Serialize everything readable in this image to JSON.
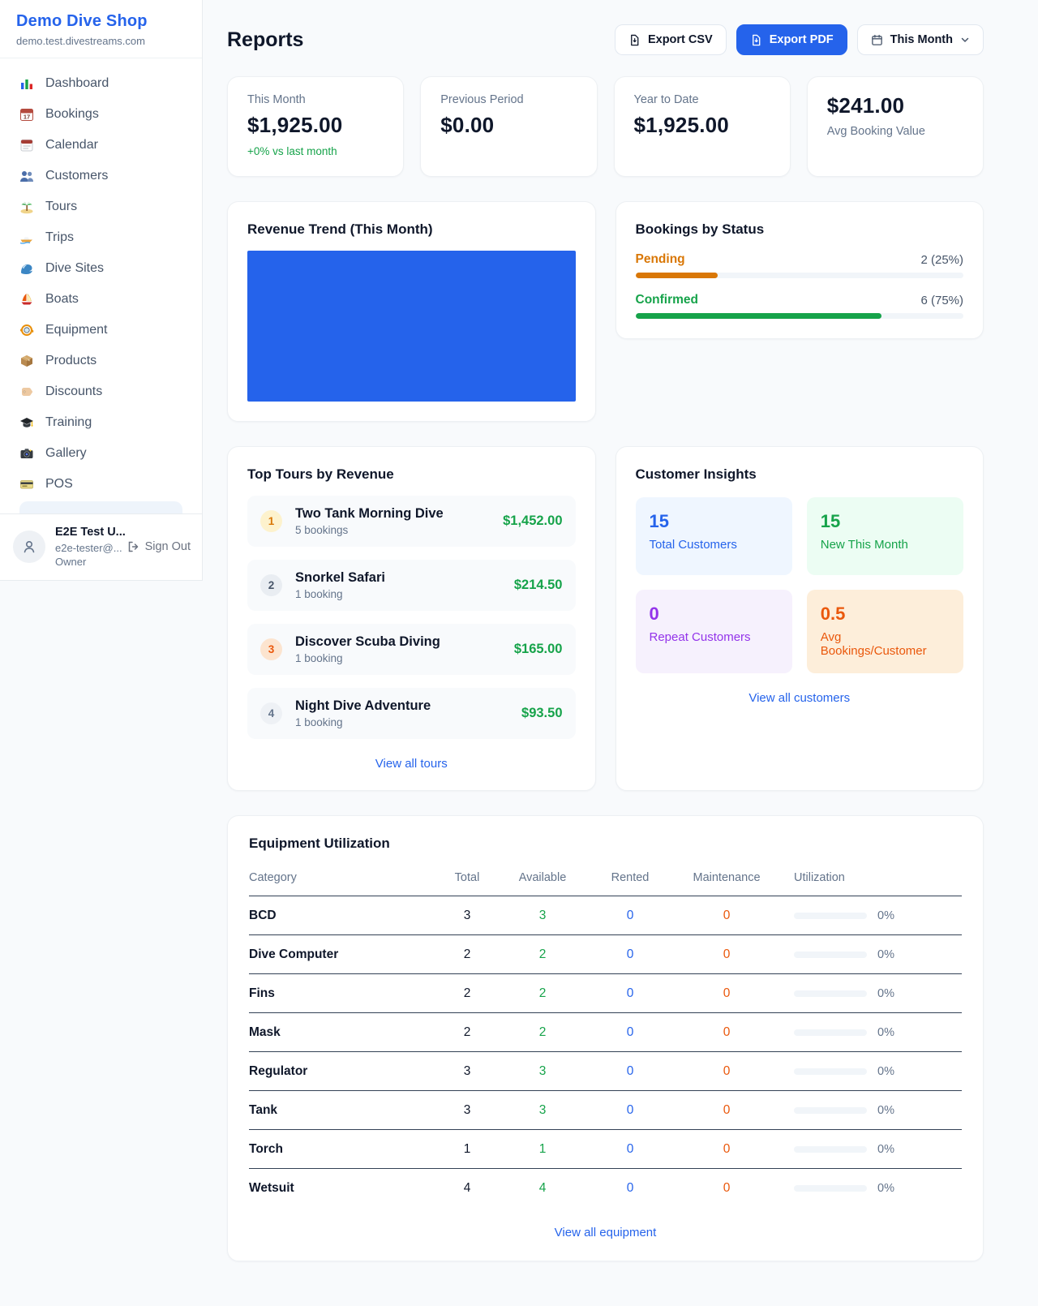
{
  "colors": {
    "accent_blue": "#2563eb",
    "green": "#16a34a",
    "pending_orange": "#d97706",
    "maintenance_orange": "#ea580c",
    "purple": "#9333ea",
    "page_bg": "#f8fafc"
  },
  "sidebar": {
    "shop_name": "Demo Dive Shop",
    "shop_domain": "demo.test.divestreams.com",
    "nav": [
      {
        "icon": "bar-chart-icon",
        "label": "Dashboard"
      },
      {
        "icon": "calendar-17-icon",
        "label": "Bookings"
      },
      {
        "icon": "calendar-pad-icon",
        "label": "Calendar"
      },
      {
        "icon": "people-icon",
        "label": "Customers"
      },
      {
        "icon": "island-icon",
        "label": "Tours"
      },
      {
        "icon": "speedboat-icon",
        "label": "Trips"
      },
      {
        "icon": "wave-icon",
        "label": "Dive Sites"
      },
      {
        "icon": "sailboat-icon",
        "label": "Boats"
      },
      {
        "icon": "dive-mask-icon",
        "label": "Equipment"
      },
      {
        "icon": "package-icon",
        "label": "Products"
      },
      {
        "icon": "tag-icon",
        "label": "Discounts"
      },
      {
        "icon": "grad-cap-icon",
        "label": "Training"
      },
      {
        "icon": "camera-icon",
        "label": "Gallery"
      },
      {
        "icon": "credit-card-icon",
        "label": "POS"
      }
    ],
    "user": {
      "name": "E2E Test U...",
      "email": "e2e-tester@...",
      "role": "Owner",
      "sign_out_label": "Sign Out"
    }
  },
  "header": {
    "title": "Reports",
    "export_csv_label": "Export CSV",
    "export_pdf_label": "Export PDF",
    "period_label": "This Month"
  },
  "stats": {
    "this_month": {
      "label": "This Month",
      "value": "$1,925.00",
      "delta": "+0% vs last month"
    },
    "previous_period": {
      "label": "Previous Period",
      "value": "$0.00"
    },
    "year_to_date": {
      "label": "Year to Date",
      "value": "$1,925.00"
    },
    "avg_booking": {
      "value": "$241.00",
      "label": "Avg Booking Value"
    }
  },
  "revenue_trend": {
    "title": "Revenue Trend (This Month)",
    "bar_fill_percent": 100,
    "bar_color": "#2563eb"
  },
  "bookings_by_status": {
    "title": "Bookings by Status",
    "items": [
      {
        "label": "Pending",
        "count_text": "2 (25%)",
        "percent": 25,
        "color": "#d97706"
      },
      {
        "label": "Confirmed",
        "count_text": "6 (75%)",
        "percent": 75,
        "color": "#16a34a"
      }
    ]
  },
  "top_tours": {
    "title": "Top Tours by Revenue",
    "rows": [
      {
        "rank": "1",
        "name": "Two Tank Morning Dive",
        "bookings": "5 bookings",
        "amount": "$1,452.00"
      },
      {
        "rank": "2",
        "name": "Snorkel Safari",
        "bookings": "1 booking",
        "amount": "$214.50"
      },
      {
        "rank": "3",
        "name": "Discover Scuba Diving",
        "bookings": "1 booking",
        "amount": "$165.00"
      },
      {
        "rank": "4",
        "name": "Night Dive Adventure",
        "bookings": "1 booking",
        "amount": "$93.50"
      }
    ],
    "view_all_label": "View all tours"
  },
  "customer_insights": {
    "title": "Customer Insights",
    "tiles": [
      {
        "value": "15",
        "label": "Total Customers"
      },
      {
        "value": "15",
        "label": "New This Month"
      },
      {
        "value": "0",
        "label": "Repeat Customers"
      },
      {
        "value": "0.5",
        "label": "Avg Bookings/Customer"
      }
    ],
    "view_all_label": "View all customers"
  },
  "equipment": {
    "title": "Equipment Utilization",
    "columns": [
      "Category",
      "Total",
      "Available",
      "Rented",
      "Maintenance",
      "Utilization"
    ],
    "rows": [
      {
        "category": "BCD",
        "total": "3",
        "available": "3",
        "rented": "0",
        "maintenance": "0",
        "utilization_percent": 0,
        "utilization_text": "0%"
      },
      {
        "category": "Dive Computer",
        "total": "2",
        "available": "2",
        "rented": "0",
        "maintenance": "0",
        "utilization_percent": 0,
        "utilization_text": "0%"
      },
      {
        "category": "Fins",
        "total": "2",
        "available": "2",
        "rented": "0",
        "maintenance": "0",
        "utilization_percent": 0,
        "utilization_text": "0%"
      },
      {
        "category": "Mask",
        "total": "2",
        "available": "2",
        "rented": "0",
        "maintenance": "0",
        "utilization_percent": 0,
        "utilization_text": "0%"
      },
      {
        "category": "Regulator",
        "total": "3",
        "available": "3",
        "rented": "0",
        "maintenance": "0",
        "utilization_percent": 0,
        "utilization_text": "0%"
      },
      {
        "category": "Tank",
        "total": "3",
        "available": "3",
        "rented": "0",
        "maintenance": "0",
        "utilization_percent": 0,
        "utilization_text": "0%"
      },
      {
        "category": "Torch",
        "total": "1",
        "available": "1",
        "rented": "0",
        "maintenance": "0",
        "utilization_percent": 0,
        "utilization_text": "0%"
      },
      {
        "category": "Wetsuit",
        "total": "4",
        "available": "4",
        "rented": "0",
        "maintenance": "0",
        "utilization_percent": 0,
        "utilization_text": "0%"
      }
    ],
    "view_all_label": "View all equipment"
  }
}
